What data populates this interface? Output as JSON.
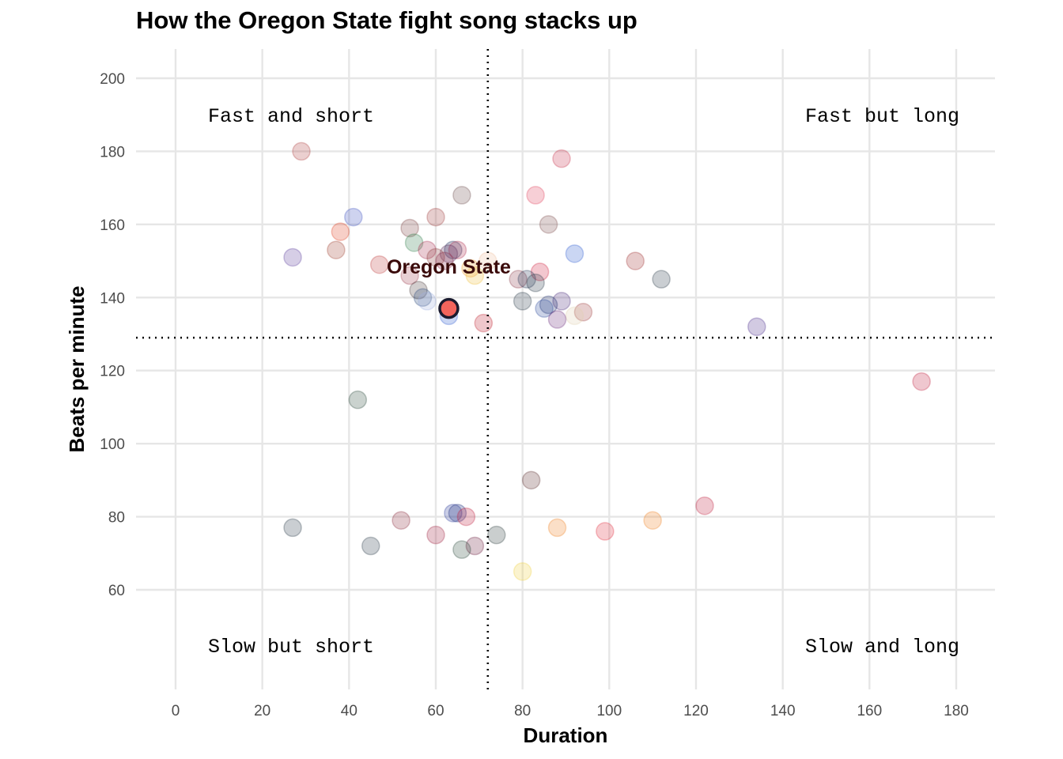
{
  "chart_data": {
    "type": "scatter",
    "title": "How the Oregon State fight song stacks up",
    "xlabel": "Duration",
    "ylabel": "Beats per minute",
    "xlim": [
      -8,
      190
    ],
    "ylim": [
      41,
      208
    ],
    "xticks": [
      0,
      20,
      40,
      60,
      80,
      100,
      120,
      140,
      160,
      180
    ],
    "yticks": [
      60,
      80,
      100,
      120,
      140,
      160,
      180,
      200
    ],
    "grid": true,
    "reference_lines": {
      "x": 72,
      "y": 129
    },
    "quadrant_labels": {
      "top_left": "Fast and short",
      "top_right": "Fast but long",
      "bottom_left": "Slow but short",
      "bottom_right": "Slow and long"
    },
    "highlight": {
      "label": "Oregon State",
      "x": 63,
      "y": 137,
      "color": "#f2645c"
    },
    "points": [
      {
        "x": 29,
        "y": 180,
        "color": "#b04040"
      },
      {
        "x": 89,
        "y": 178,
        "color": "#c8314a"
      },
      {
        "x": 66,
        "y": 168,
        "color": "#6b4a4a"
      },
      {
        "x": 83,
        "y": 168,
        "color": "#e0405a"
      },
      {
        "x": 41,
        "y": 162,
        "color": "#3a4fc0"
      },
      {
        "x": 60,
        "y": 162,
        "color": "#a03a3a"
      },
      {
        "x": 86,
        "y": 160,
        "color": "#7a4a4a"
      },
      {
        "x": 54,
        "y": 159,
        "color": "#7a4040"
      },
      {
        "x": 38,
        "y": 158,
        "color": "#e04020"
      },
      {
        "x": 55,
        "y": 155,
        "color": "#2e7d4a"
      },
      {
        "x": 37,
        "y": 153,
        "color": "#a04030"
      },
      {
        "x": 58,
        "y": 153,
        "color": "#a83050"
      },
      {
        "x": 64,
        "y": 153,
        "color": "#1a2a5a"
      },
      {
        "x": 65,
        "y": 153,
        "color": "#b03050"
      },
      {
        "x": 63,
        "y": 152,
        "color": "#5a2a5a"
      },
      {
        "x": 92,
        "y": 152,
        "color": "#2a5ad0"
      },
      {
        "x": 27,
        "y": 151,
        "color": "#5a3a9a"
      },
      {
        "x": 60,
        "y": 151,
        "color": "#8a3a3a"
      },
      {
        "x": 62,
        "y": 150,
        "color": "#8a2a4a"
      },
      {
        "x": 72,
        "y": 150,
        "color": "#f0c0a0"
      },
      {
        "x": 106,
        "y": 150,
        "color": "#a03030"
      },
      {
        "x": 47,
        "y": 149,
        "color": "#c04040"
      },
      {
        "x": 68,
        "y": 148,
        "color": "#f0a030"
      },
      {
        "x": 84,
        "y": 147,
        "color": "#d02040"
      },
      {
        "x": 54,
        "y": 146,
        "color": "#a04050"
      },
      {
        "x": 69,
        "y": 146,
        "color": "#f0c040"
      },
      {
        "x": 79,
        "y": 145,
        "color": "#8a3a4a"
      },
      {
        "x": 81,
        "y": 145,
        "color": "#2a3a5a"
      },
      {
        "x": 112,
        "y": 145,
        "color": "#2a3a4a"
      },
      {
        "x": 83,
        "y": 144,
        "color": "#2a3a4a"
      },
      {
        "x": 56,
        "y": 142,
        "color": "#4a3a3a"
      },
      {
        "x": 57,
        "y": 140,
        "color": "#2a4a7a"
      },
      {
        "x": 58,
        "y": 139,
        "color": "#a0b0e0"
      },
      {
        "x": 80,
        "y": 139,
        "color": "#2a3a4a"
      },
      {
        "x": 89,
        "y": 139,
        "color": "#4a2a7a"
      },
      {
        "x": 86,
        "y": 138,
        "color": "#1a2a6a"
      },
      {
        "x": 85,
        "y": 137,
        "color": "#2a4a9a"
      },
      {
        "x": 94,
        "y": 136,
        "color": "#a04040"
      },
      {
        "x": 92,
        "y": 135,
        "color": "#e0d0b0"
      },
      {
        "x": 63,
        "y": 135,
        "color": "#2a5ad0"
      },
      {
        "x": 88,
        "y": 134,
        "color": "#6a2a7a"
      },
      {
        "x": 71,
        "y": 133,
        "color": "#c02030"
      },
      {
        "x": 134,
        "y": 132,
        "color": "#4a2a8a"
      },
      {
        "x": 172,
        "y": 117,
        "color": "#c02040"
      },
      {
        "x": 42,
        "y": 112,
        "color": "#2a4a3a"
      },
      {
        "x": 82,
        "y": 90,
        "color": "#5a2a2a"
      },
      {
        "x": 122,
        "y": 83,
        "color": "#c02040"
      },
      {
        "x": 64,
        "y": 81,
        "color": "#2a3a9a"
      },
      {
        "x": 65,
        "y": 81,
        "color": "#1a2a7a"
      },
      {
        "x": 67,
        "y": 80,
        "color": "#c02040"
      },
      {
        "x": 52,
        "y": 79,
        "color": "#8a2a3a"
      },
      {
        "x": 110,
        "y": 79,
        "color": "#f08020"
      },
      {
        "x": 27,
        "y": 77,
        "color": "#2a3a4a"
      },
      {
        "x": 88,
        "y": 77,
        "color": "#f08020"
      },
      {
        "x": 99,
        "y": 76,
        "color": "#e03040"
      },
      {
        "x": 60,
        "y": 75,
        "color": "#a02040"
      },
      {
        "x": 74,
        "y": 75,
        "color": "#2a3a3a"
      },
      {
        "x": 45,
        "y": 72,
        "color": "#2a3a4a"
      },
      {
        "x": 69,
        "y": 72,
        "color": "#6a1a3a"
      },
      {
        "x": 66,
        "y": 71,
        "color": "#2a4a3a"
      },
      {
        "x": 80,
        "y": 65,
        "color": "#f0d040"
      }
    ]
  }
}
